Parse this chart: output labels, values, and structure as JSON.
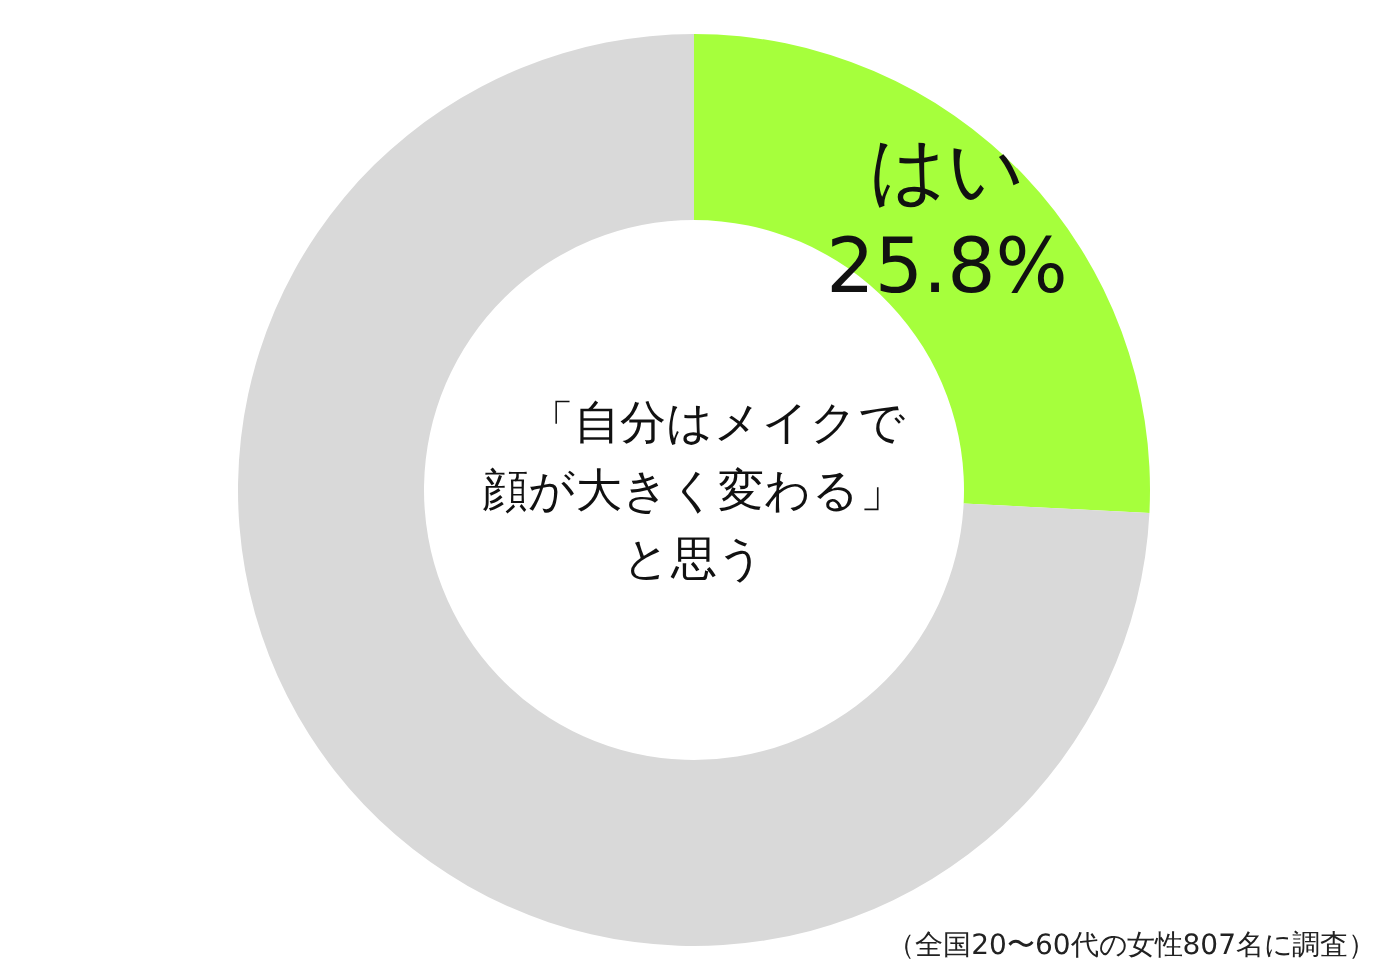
{
  "chart_data": {
    "type": "donut",
    "title": "「自分はメイクで顔が大きく変わる」と思う",
    "categories": [
      "はい",
      null
    ],
    "values": [
      25.8,
      74.2
    ],
    "colors": [
      "#a6ff3c",
      "#d9d9d9"
    ],
    "value_labels": [
      "25.8%",
      null
    ],
    "annotations": [
      "（全国20〜60代の女性807名に調査）"
    ]
  }
}
